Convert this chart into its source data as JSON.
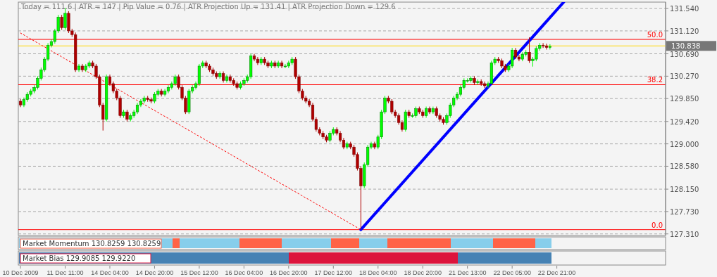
{
  "chart_data": {
    "type": "candlestick",
    "annotations": [
      "Today = 111.6  |  ATR = 147  |  Pip Value = 0.76  |  ATR Projection Up = 131.41  |  ATR Projection Down = 129.6",
      "Market Momentum 130.8259 130.8259",
      "Market Bias 129.9085 129.9220",
      {
        "text": "50.0",
        "y": 130.96
      },
      {
        "text": "38.2",
        "y": 130.11
      },
      {
        "text": "0.0",
        "y": 127.39
      }
    ],
    "categories": [
      "10 Dec 2009",
      null,
      null,
      null,
      null,
      null,
      null,
      null,
      null,
      null,
      null,
      null,
      null,
      "11 Dec 11:00",
      null,
      null,
      null,
      null,
      null,
      null,
      null,
      null,
      null,
      null,
      null,
      null,
      "14 Dec 04:00",
      null,
      null,
      null,
      null,
      null,
      null,
      null,
      null,
      null,
      null,
      null,
      null,
      "14 Dec 20:00",
      null,
      null,
      null,
      null,
      null,
      null,
      null,
      null,
      null,
      null,
      null,
      null,
      "15 Dec 12:00",
      null,
      null,
      null,
      null,
      null,
      null,
      null,
      null,
      null,
      null,
      null,
      null,
      "16 Dec 04:00",
      null,
      null,
      null,
      null,
      null,
      null,
      null,
      null,
      null,
      null,
      null,
      null,
      "16 Dec 20:00",
      null,
      null,
      null,
      null,
      null,
      null,
      null,
      null,
      null,
      null,
      null,
      null,
      "17 Dec 12:00",
      null,
      null,
      null,
      null,
      null,
      null,
      null,
      null,
      null,
      null,
      null,
      null,
      "18 Dec 04:00",
      null,
      null,
      null,
      null,
      null,
      null,
      null,
      null,
      null,
      null,
      null,
      null,
      "18 Dec 20:00",
      null,
      null,
      null,
      null,
      null,
      null,
      null,
      null,
      null,
      null,
      null,
      null,
      "21 Dec 13:00",
      null,
      null,
      null,
      null,
      null,
      null,
      null,
      null,
      null,
      null,
      null,
      null,
      "22 Dec 05:00",
      null,
      null,
      null,
      null,
      null,
      null,
      null,
      null,
      null,
      null,
      null,
      null,
      "22 Dec 21:00",
      null,
      null,
      null,
      null,
      null,
      null,
      null,
      null,
      null,
      null,
      null,
      null,
      null,
      null,
      null,
      null,
      null,
      null,
      null,
      null,
      null,
      null,
      null,
      null,
      null,
      null,
      null,
      null,
      null,
      null,
      null
    ],
    "ylim": [
      127.28,
      131.66
    ],
    "yticks": [
      {
        "value": 127.31,
        "label": "127.310"
      },
      {
        "value": 127.73,
        "label": "127.730"
      },
      {
        "value": 128.15,
        "label": "128.150"
      },
      {
        "value": 128.58,
        "label": "128.580"
      },
      {
        "value": 129.0,
        "label": "129.000"
      },
      {
        "value": 129.42,
        "label": "129.420"
      },
      {
        "value": 129.85,
        "label": "129.850"
      },
      {
        "value": 130.27,
        "label": "130.270"
      },
      {
        "value": 130.69,
        "label": "130.690"
      },
      {
        "value": 131.12,
        "label": "131.120"
      },
      {
        "value": 131.54,
        "label": "131.540"
      }
    ],
    "grid": "y",
    "ref_lines": [
      {
        "axis": "y",
        "value": 130.96,
        "color": "#ff0000"
      },
      {
        "axis": "y",
        "value": 130.11,
        "color": "#ff0000"
      },
      {
        "axis": "y",
        "value": 127.39,
        "color": "#ff0000"
      },
      {
        "axis": "y",
        "value": 130.838,
        "label": "130.838",
        "color": "#ffd700"
      }
    ],
    "ohlc": [
      [
        129.8,
        129.84,
        129.69,
        129.73
      ],
      [
        129.73,
        129.87,
        129.69,
        129.83
      ],
      [
        129.83,
        129.97,
        129.79,
        129.93
      ],
      [
        129.93,
        130.03,
        129.89,
        129.99
      ],
      [
        129.99,
        130.1,
        129.95,
        130.06
      ],
      [
        130.06,
        130.27,
        130.02,
        130.23
      ],
      [
        130.23,
        130.43,
        130.19,
        130.39
      ],
      [
        130.39,
        130.63,
        130.35,
        130.59
      ],
      [
        130.59,
        130.89,
        130.55,
        130.85
      ],
      [
        130.85,
        130.96,
        130.81,
        130.92
      ],
      [
        130.92,
        131.16,
        130.88,
        131.12
      ],
      [
        131.12,
        131.42,
        131.08,
        131.38
      ],
      [
        131.38,
        131.42,
        131.14,
        131.18
      ],
      [
        131.18,
        131.55,
        131.14,
        131.45
      ],
      [
        131.45,
        131.49,
        131.08,
        131.12
      ],
      [
        131.12,
        131.16,
        131.01,
        131.05
      ],
      [
        131.05,
        131.09,
        130.35,
        130.39
      ],
      [
        130.39,
        130.5,
        130.35,
        130.46
      ],
      [
        130.46,
        130.5,
        130.35,
        130.39
      ],
      [
        130.39,
        130.5,
        130.35,
        130.46
      ],
      [
        130.46,
        130.56,
        130.42,
        130.52
      ],
      [
        130.52,
        130.56,
        130.42,
        130.46
      ],
      [
        130.46,
        130.5,
        130.22,
        130.26
      ],
      [
        130.26,
        130.3,
        129.69,
        129.73
      ],
      [
        129.73,
        129.77,
        129.25,
        129.46
      ],
      [
        129.46,
        130.3,
        129.42,
        130.26
      ],
      [
        130.26,
        130.3,
        130.09,
        130.13
      ],
      [
        130.13,
        130.17,
        129.95,
        129.99
      ],
      [
        129.99,
        130.03,
        129.82,
        129.86
      ],
      [
        129.86,
        129.9,
        129.49,
        129.53
      ],
      [
        129.53,
        129.64,
        129.49,
        129.6
      ],
      [
        129.6,
        129.64,
        129.42,
        129.46
      ],
      [
        129.46,
        129.57,
        129.42,
        129.53
      ],
      [
        129.53,
        129.64,
        129.49,
        129.6
      ],
      [
        129.6,
        129.77,
        129.56,
        129.73
      ],
      [
        129.73,
        129.84,
        129.69,
        129.8
      ],
      [
        129.8,
        129.9,
        129.76,
        129.86
      ],
      [
        129.86,
        129.9,
        129.79,
        129.83
      ],
      [
        129.83,
        129.87,
        129.76,
        129.8
      ],
      [
        129.8,
        129.97,
        129.76,
        129.93
      ],
      [
        129.93,
        130.03,
        129.89,
        129.99
      ],
      [
        129.99,
        130.03,
        129.89,
        129.93
      ],
      [
        129.93,
        130.03,
        129.89,
        129.99
      ],
      [
        129.99,
        130.1,
        129.95,
        130.06
      ],
      [
        130.06,
        130.17,
        130.02,
        130.13
      ],
      [
        130.13,
        130.3,
        130.09,
        130.26
      ],
      [
        130.26,
        130.3,
        130.02,
        130.06
      ],
      [
        130.06,
        130.1,
        129.82,
        129.86
      ],
      [
        129.86,
        129.9,
        129.56,
        129.6
      ],
      [
        129.6,
        130.03,
        129.56,
        129.99
      ],
      [
        129.99,
        130.1,
        129.95,
        130.06
      ],
      [
        130.06,
        130.17,
        130.02,
        130.13
      ],
      [
        130.13,
        130.5,
        130.09,
        130.46
      ],
      [
        130.46,
        130.56,
        130.42,
        130.52
      ],
      [
        130.52,
        130.56,
        130.42,
        130.46
      ],
      [
        130.46,
        130.5,
        130.35,
        130.39
      ],
      [
        130.39,
        130.43,
        130.28,
        130.32
      ],
      [
        130.32,
        130.36,
        130.22,
        130.26
      ],
      [
        130.26,
        130.36,
        130.22,
        130.32
      ],
      [
        130.32,
        130.36,
        130.15,
        130.19
      ],
      [
        130.19,
        130.3,
        130.15,
        130.26
      ],
      [
        130.26,
        130.3,
        130.15,
        130.19
      ],
      [
        130.19,
        130.23,
        130.09,
        130.13
      ],
      [
        130.13,
        130.17,
        130.02,
        130.06
      ],
      [
        130.06,
        130.17,
        130.02,
        130.13
      ],
      [
        130.13,
        130.23,
        130.09,
        130.19
      ],
      [
        130.19,
        130.3,
        130.15,
        130.26
      ],
      [
        130.26,
        130.69,
        130.22,
        130.65
      ],
      [
        130.65,
        130.69,
        130.55,
        130.59
      ],
      [
        130.59,
        130.63,
        130.48,
        130.52
      ],
      [
        130.52,
        130.63,
        130.48,
        130.59
      ],
      [
        130.59,
        130.63,
        130.48,
        130.52
      ],
      [
        130.52,
        130.56,
        130.42,
        130.46
      ],
      [
        130.46,
        130.56,
        130.42,
        130.52
      ],
      [
        130.52,
        130.56,
        130.42,
        130.46
      ],
      [
        130.46,
        130.56,
        130.42,
        130.52
      ],
      [
        130.52,
        130.56,
        130.42,
        130.46
      ],
      [
        130.46,
        130.5,
        130.42,
        130.46
      ],
      [
        130.46,
        130.56,
        130.42,
        130.52
      ],
      [
        130.52,
        130.63,
        130.48,
        130.59
      ],
      [
        130.59,
        130.63,
        130.22,
        130.26
      ],
      [
        130.26,
        130.3,
        129.95,
        129.99
      ],
      [
        129.99,
        130.03,
        129.82,
        129.86
      ],
      [
        129.86,
        129.9,
        129.76,
        129.8
      ],
      [
        129.8,
        129.84,
        129.69,
        129.73
      ],
      [
        129.73,
        129.77,
        129.42,
        129.46
      ],
      [
        129.46,
        129.5,
        129.23,
        129.27
      ],
      [
        129.27,
        129.31,
        129.16,
        129.2
      ],
      [
        129.2,
        129.24,
        129.09,
        129.13
      ],
      [
        129.13,
        129.17,
        129.03,
        129.07
      ],
      [
        129.07,
        129.24,
        129.03,
        129.2
      ],
      [
        129.2,
        129.31,
        129.16,
        129.27
      ],
      [
        129.27,
        129.31,
        129.16,
        129.2
      ],
      [
        129.2,
        129.24,
        129.03,
        129.07
      ],
      [
        129.07,
        129.11,
        128.9,
        128.94
      ],
      [
        128.94,
        129.04,
        128.9,
        129.0
      ],
      [
        129.0,
        129.04,
        128.9,
        128.94
      ],
      [
        128.94,
        128.98,
        128.76,
        128.8
      ],
      [
        128.8,
        128.84,
        128.5,
        128.54
      ],
      [
        128.54,
        128.58,
        127.39,
        128.21
      ],
      [
        128.21,
        128.65,
        128.17,
        128.61
      ],
      [
        128.61,
        128.98,
        128.57,
        128.94
      ],
      [
        128.94,
        129.04,
        128.9,
        129.0
      ],
      [
        129.0,
        129.04,
        128.9,
        128.94
      ],
      [
        128.94,
        129.17,
        128.9,
        129.13
      ],
      [
        129.13,
        129.64,
        129.09,
        129.6
      ],
      [
        129.6,
        129.9,
        129.56,
        129.86
      ],
      [
        129.86,
        129.9,
        129.76,
        129.8
      ],
      [
        129.8,
        129.84,
        129.56,
        129.6
      ],
      [
        129.6,
        129.64,
        129.49,
        129.53
      ],
      [
        129.53,
        129.57,
        129.36,
        129.4
      ],
      [
        129.4,
        129.44,
        129.23,
        129.27
      ],
      [
        129.27,
        129.64,
        129.23,
        129.6
      ],
      [
        129.6,
        129.64,
        129.49,
        129.53
      ],
      [
        129.53,
        129.57,
        129.49,
        129.53
      ],
      [
        129.53,
        129.7,
        129.49,
        129.66
      ],
      [
        129.66,
        129.7,
        129.56,
        129.6
      ],
      [
        129.6,
        129.64,
        129.49,
        129.53
      ],
      [
        129.53,
        129.7,
        129.49,
        129.66
      ],
      [
        129.66,
        129.7,
        129.56,
        129.6
      ],
      [
        129.6,
        129.7,
        129.56,
        129.66
      ],
      [
        129.66,
        129.7,
        129.49,
        129.53
      ],
      [
        129.53,
        129.57,
        129.42,
        129.46
      ],
      [
        129.46,
        129.5,
        129.36,
        129.4
      ],
      [
        129.4,
        129.57,
        129.36,
        129.53
      ],
      [
        129.53,
        129.77,
        129.49,
        129.73
      ],
      [
        129.73,
        129.9,
        129.69,
        129.86
      ],
      [
        129.86,
        129.97,
        129.82,
        129.93
      ],
      [
        129.93,
        130.1,
        129.89,
        130.06
      ],
      [
        130.06,
        130.23,
        130.02,
        130.19
      ],
      [
        130.19,
        130.23,
        130.15,
        130.19
      ],
      [
        130.19,
        130.27,
        130.15,
        130.23
      ],
      [
        130.23,
        130.27,
        130.11,
        130.15
      ],
      [
        130.15,
        130.21,
        130.11,
        130.17
      ],
      [
        130.17,
        130.21,
        130.09,
        130.13
      ],
      [
        130.13,
        130.17,
        130.05,
        130.09
      ],
      [
        130.09,
        130.17,
        130.05,
        130.13
      ],
      [
        130.13,
        130.56,
        130.13,
        130.52
      ],
      [
        130.52,
        130.63,
        130.48,
        130.59
      ],
      [
        130.59,
        130.63,
        130.52,
        130.56
      ],
      [
        130.56,
        130.6,
        130.42,
        130.46
      ],
      [
        130.46,
        130.5,
        130.35,
        130.39
      ],
      [
        130.39,
        130.5,
        130.35,
        130.46
      ],
      [
        130.46,
        130.8,
        130.42,
        130.76
      ],
      [
        130.76,
        130.8,
        130.59,
        130.63
      ],
      [
        130.63,
        130.67,
        130.55,
        130.59
      ],
      [
        130.59,
        130.72,
        130.55,
        130.68
      ],
      [
        130.68,
        130.76,
        130.64,
        130.72
      ],
      [
        130.72,
        131.0,
        130.52,
        130.56
      ],
      [
        130.56,
        130.63,
        130.45,
        130.59
      ],
      [
        130.59,
        130.83,
        130.55,
        130.79
      ],
      [
        130.79,
        130.89,
        130.75,
        130.85
      ],
      [
        130.85,
        130.89,
        130.8,
        130.84
      ],
      [
        130.84,
        130.88,
        130.77,
        130.81
      ],
      [
        130.81,
        130.87,
        130.77,
        130.83
      ],
      null,
      null,
      null,
      null,
      null,
      null,
      null,
      null,
      null,
      null,
      null,
      null,
      null,
      null,
      null,
      null,
      null,
      null,
      null,
      null,
      null,
      null,
      null,
      null,
      null,
      null,
      null,
      null,
      null,
      null,
      null,
      null,
      null
    ],
    "series": [
      {
        "type": "line",
        "color": "#ff0000",
        "line_style": "dotted",
        "values": [
          131.08,
          null,
          null,
          null,
          null,
          null,
          null,
          null,
          null,
          null,
          null,
          null,
          null,
          null,
          null,
          null,
          null,
          null,
          null,
          null,
          null,
          null,
          null,
          null,
          null,
          null,
          null,
          null,
          null,
          null,
          null,
          null,
          null,
          null,
          null,
          null,
          null,
          null,
          null,
          null,
          null,
          null,
          null,
          null,
          null,
          null,
          null,
          null,
          null,
          null,
          null,
          null,
          null,
          null,
          null,
          null,
          null,
          null,
          null,
          null,
          null,
          null,
          null,
          null,
          null,
          null,
          null,
          null,
          null,
          null,
          null,
          null,
          null,
          null,
          null,
          null,
          null,
          null,
          null,
          null,
          null,
          null,
          null,
          null,
          null,
          null,
          null,
          null,
          null,
          null,
          null,
          null,
          null,
          null,
          null,
          null,
          null,
          null,
          null,
          127.39,
          null,
          null,
          null,
          null,
          null,
          null,
          null,
          null,
          null,
          null,
          null,
          null,
          null,
          null,
          null,
          null,
          null,
          null,
          null,
          null,
          null,
          null,
          null,
          null,
          null,
          null,
          null,
          null,
          null,
          null,
          null,
          null,
          null,
          null,
          null,
          null,
          null,
          null,
          null,
          null,
          null,
          null,
          null,
          null,
          null,
          null,
          null,
          null,
          null,
          null,
          null,
          null,
          null,
          null,
          null,
          null,
          null,
          null,
          null,
          null,
          null,
          null,
          null,
          null,
          null,
          null,
          null,
          null,
          null,
          null,
          null,
          null,
          null,
          null,
          null,
          null,
          null,
          null,
          null,
          null,
          null,
          null,
          null,
          null,
          null,
          null,
          null,
          null
        ]
      },
      {
        "type": "line",
        "color": "#0000ff",
        "line_style": "solid",
        "values": [
          null,
          null,
          null,
          null,
          null,
          null,
          null,
          null,
          null,
          null,
          null,
          null,
          null,
          null,
          null,
          null,
          null,
          null,
          null,
          null,
          null,
          null,
          null,
          null,
          null,
          null,
          null,
          null,
          null,
          null,
          null,
          null,
          null,
          null,
          null,
          null,
          null,
          null,
          null,
          null,
          null,
          null,
          null,
          null,
          null,
          null,
          null,
          null,
          null,
          null,
          null,
          null,
          null,
          null,
          null,
          null,
          null,
          null,
          null,
          null,
          null,
          null,
          null,
          null,
          null,
          null,
          null,
          null,
          null,
          null,
          null,
          null,
          null,
          null,
          null,
          null,
          null,
          null,
          null,
          null,
          null,
          null,
          null,
          null,
          null,
          null,
          null,
          null,
          null,
          null,
          null,
          null,
          null,
          null,
          null,
          null,
          null,
          null,
          null,
          127.39,
          null,
          null,
          null,
          null,
          null,
          null,
          null,
          null,
          null,
          null,
          null,
          null,
          null,
          null,
          null,
          null,
          null,
          null,
          null,
          null,
          null,
          null,
          null,
          null,
          null,
          null,
          null,
          null,
          null,
          null,
          null,
          null,
          null,
          null,
          null,
          null,
          null,
          null,
          null,
          null,
          null,
          null,
          null,
          null,
          null,
          null,
          null,
          null,
          null,
          null,
          null,
          null,
          null,
          null,
          null,
          null,
          null,
          null,
          131.66,
          null,
          null,
          null,
          null,
          null,
          null,
          null,
          null,
          null,
          null,
          null,
          null,
          null,
          null,
          null,
          null,
          null,
          null,
          null,
          null,
          null,
          null,
          null,
          null,
          null,
          null,
          null,
          null,
          null
        ]
      }
    ]
  }
}
